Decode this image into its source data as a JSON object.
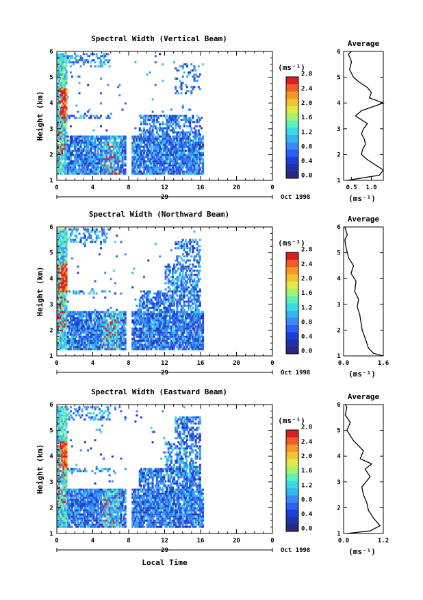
{
  "xlabel": "Local Time",
  "date_label": "Oct 1998",
  "day_label": "29",
  "avg_title": "Average",
  "colorbar_unit": "(ms⁻¹)",
  "avg_xlabel": "(ms⁻¹)",
  "ylabel": "Height (km)",
  "colors": {
    "scale": [
      "#2b2a7a",
      "#1f33a8",
      "#1e3fd6",
      "#2e5ff2",
      "#3a8af5",
      "#34b7f0",
      "#37dbe0",
      "#5ff0b8",
      "#a4f26e",
      "#e0e84a",
      "#f5c131",
      "#f5982b",
      "#ef5c28",
      "#d61f1f"
    ]
  },
  "chart_data": [
    {
      "type": "heatmap",
      "title": "Spectral Width (Vertical Beam)",
      "xlim": [
        0,
        24
      ],
      "ylim": [
        1,
        6
      ],
      "x_ticks": [
        "0",
        "4",
        "8",
        "12",
        "16",
        "20",
        "0"
      ],
      "y_ticks": [
        "1",
        "2",
        "3",
        "4",
        "5",
        "6"
      ],
      "colorbar": {
        "ticks": [
          "0.0",
          "0.4",
          "0.8",
          "1.2",
          "1.6",
          "2.0",
          "2.4",
          "2.8"
        ],
        "range": [
          0,
          2.8
        ]
      },
      "average": {
        "title": "Average",
        "xlim": [
          0.3,
          1.3
        ],
        "x_ticks": [
          "0.5",
          "1.0"
        ],
        "x_tick_values": [
          0.5,
          1.0
        ],
        "profile": [
          [
            0.4,
            1.0
          ],
          [
            1.2,
            1.2
          ],
          [
            1.3,
            1.4
          ],
          [
            1.1,
            1.6
          ],
          [
            0.9,
            1.8
          ],
          [
            0.75,
            2.0
          ],
          [
            0.78,
            2.2
          ],
          [
            0.85,
            2.4
          ],
          [
            0.82,
            2.6
          ],
          [
            0.75,
            2.8
          ],
          [
            0.8,
            3.0
          ],
          [
            0.9,
            3.2
          ],
          [
            0.6,
            3.5
          ],
          [
            0.75,
            3.7
          ],
          [
            1.3,
            4.0
          ],
          [
            0.95,
            4.2
          ],
          [
            1.0,
            4.4
          ],
          [
            0.9,
            4.6
          ],
          [
            0.7,
            4.8
          ],
          [
            0.55,
            5.0
          ],
          [
            0.45,
            5.3
          ],
          [
            0.5,
            5.6
          ],
          [
            0.42,
            5.9
          ],
          [
            0.5,
            6.0
          ]
        ]
      }
    },
    {
      "type": "heatmap",
      "title": "Spectral Width (Northward Beam)",
      "xlim": [
        0,
        24
      ],
      "ylim": [
        1,
        6
      ],
      "x_ticks": [
        "0",
        "4",
        "8",
        "12",
        "16",
        "20",
        "0"
      ],
      "y_ticks": [
        "1",
        "2",
        "3",
        "4",
        "5",
        "6"
      ],
      "colorbar": {
        "ticks": [
          "0.0",
          "0.4",
          "0.8",
          "1.2",
          "1.6",
          "2.0",
          "2.4",
          "2.8"
        ],
        "range": [
          0,
          2.8
        ]
      },
      "average": {
        "title": "Average",
        "xlim": [
          0.0,
          1.6
        ],
        "x_ticks": [
          "0.0",
          "1.6"
        ],
        "x_tick_values": [
          0.0,
          1.6
        ],
        "profile": [
          [
            1.6,
            1.0
          ],
          [
            1.2,
            1.1
          ],
          [
            1.0,
            1.3
          ],
          [
            0.9,
            1.6
          ],
          [
            0.75,
            2.0
          ],
          [
            0.7,
            2.3
          ],
          [
            0.65,
            2.6
          ],
          [
            0.55,
            2.9
          ],
          [
            0.6,
            3.2
          ],
          [
            0.45,
            3.5
          ],
          [
            0.5,
            3.9
          ],
          [
            0.3,
            4.2
          ],
          [
            0.4,
            4.5
          ],
          [
            0.2,
            4.8
          ],
          [
            0.1,
            5.2
          ],
          [
            0.05,
            5.5
          ],
          [
            0.15,
            5.7
          ],
          [
            0.05,
            6.0
          ]
        ]
      }
    },
    {
      "type": "heatmap",
      "title": "Spectral Width (Eastward Beam)",
      "xlim": [
        0,
        24
      ],
      "ylim": [
        1,
        6
      ],
      "x_ticks": [
        "0",
        "4",
        "8",
        "12",
        "16",
        "20",
        "0"
      ],
      "y_ticks": [
        "1",
        "2",
        "3",
        "4",
        "5",
        "6"
      ],
      "colorbar": {
        "ticks": [
          "0.0",
          "0.4",
          "0.8",
          "1.2",
          "1.6",
          "2.0",
          "2.4",
          "2.8"
        ],
        "range": [
          0,
          2.8
        ]
      },
      "average": {
        "title": "Average",
        "xlim": [
          0.0,
          1.2
        ],
        "x_ticks": [
          "0.0",
          "1.2"
        ],
        "x_tick_values": [
          0.0,
          1.2
        ],
        "profile": [
          [
            0.1,
            1.0
          ],
          [
            0.8,
            1.1
          ],
          [
            1.1,
            1.3
          ],
          [
            0.9,
            1.6
          ],
          [
            0.75,
            1.9
          ],
          [
            0.7,
            2.2
          ],
          [
            0.6,
            2.5
          ],
          [
            0.55,
            2.8
          ],
          [
            0.8,
            3.2
          ],
          [
            0.65,
            3.5
          ],
          [
            0.85,
            3.7
          ],
          [
            0.5,
            3.9
          ],
          [
            0.6,
            4.2
          ],
          [
            0.3,
            4.6
          ],
          [
            0.1,
            5.0
          ],
          [
            0.2,
            5.3
          ],
          [
            0.05,
            5.6
          ],
          [
            0.1,
            5.9
          ],
          [
            0.05,
            6.0
          ]
        ]
      }
    }
  ]
}
